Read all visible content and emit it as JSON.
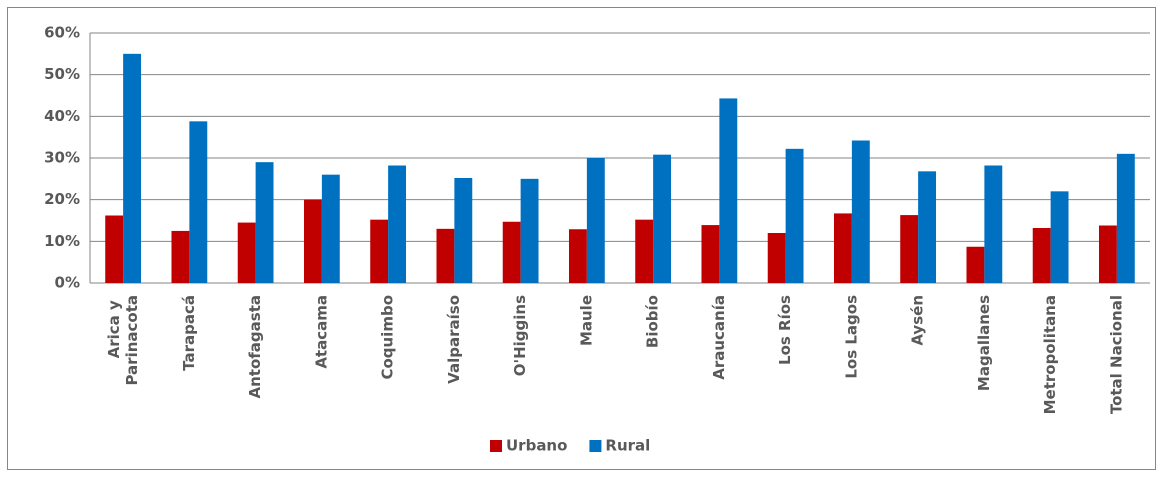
{
  "chart_data": {
    "type": "bar",
    "categories": [
      "Arica y Parinacota",
      "Tarapacá",
      "Antofagasta",
      "Atacama",
      "Coquimbo",
      "Valparaíso",
      "O'Higgins",
      "Maule",
      "Biobío",
      "Araucanía",
      "Los Ríos",
      "Los Lagos",
      "Aysén",
      "Magallanes",
      "Metropolitana",
      "Total Nacional"
    ],
    "series": [
      {
        "name": "Urbano",
        "color": "#c00000",
        "values": [
          16.2,
          12.5,
          14.5,
          20,
          15.2,
          13,
          14.7,
          12.9,
          15.2,
          13.9,
          12,
          16.7,
          16.3,
          8.7,
          13.2,
          13.8
        ]
      },
      {
        "name": "Rural",
        "color": "#0070c0",
        "values": [
          55,
          38.8,
          29,
          26,
          28.2,
          25.2,
          25,
          30,
          30.8,
          44.3,
          32.2,
          34.2,
          26.8,
          28.2,
          22,
          31
        ]
      }
    ],
    "ylim": [
      0,
      60
    ],
    "yticks": [
      {
        "value": 0,
        "label": "0%"
      },
      {
        "value": 10,
        "label": "10%"
      },
      {
        "value": 20,
        "label": "20%"
      },
      {
        "value": 30,
        "label": "30%"
      },
      {
        "value": 40,
        "label": "40%"
      },
      {
        "value": 50,
        "label": "50%"
      },
      {
        "value": 60,
        "label": "60%"
      }
    ],
    "grid": true,
    "legend": "bottom"
  }
}
